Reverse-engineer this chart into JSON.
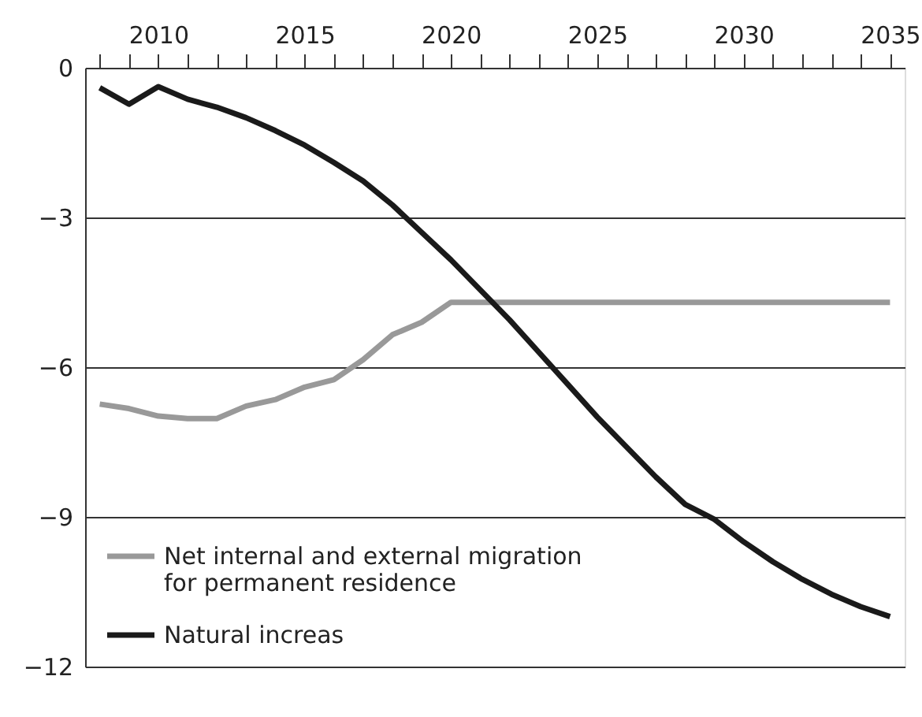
{
  "chart_data": {
    "type": "line",
    "x": [
      2008,
      2009,
      2010,
      2011,
      2012,
      2013,
      2014,
      2015,
      2016,
      2017,
      2018,
      2019,
      2020,
      2021,
      2022,
      2023,
      2024,
      2025,
      2026,
      2027,
      2028,
      2029,
      2030,
      2031,
      2032,
      2033,
      2034,
      2035
    ],
    "series": [
      {
        "name": "Net internal and external migration for permanent residence",
        "color": "#999999",
        "values": [
          -6.74,
          -6.83,
          -6.98,
          -7.03,
          -7.03,
          -6.78,
          -6.65,
          -6.4,
          -6.25,
          -5.85,
          -5.35,
          -5.1,
          -4.7,
          -4.7,
          -4.7,
          -4.7,
          -4.7,
          -4.7,
          -4.7,
          -4.7,
          -4.7,
          -4.7,
          -4.7,
          -4.7,
          -4.7,
          -4.7,
          -4.7,
          -4.7
        ]
      },
      {
        "name": "Natural increas",
        "color": "#1a1a1a",
        "values": [
          -0.4,
          -0.73,
          -0.38,
          -0.63,
          -0.79,
          -1.0,
          -1.26,
          -1.55,
          -1.9,
          -2.27,
          -2.75,
          -3.3,
          -3.85,
          -4.45,
          -5.05,
          -5.7,
          -6.35,
          -7.0,
          -7.6,
          -8.2,
          -8.75,
          -9.05,
          -9.5,
          -9.9,
          -10.25,
          -10.55,
          -10.8,
          -11.0
        ]
      }
    ],
    "xlim": [
      2007.5,
      2035.5
    ],
    "xticks": [
      {
        "value": 2008,
        "label": null
      },
      {
        "value": 2009,
        "label": null
      },
      2010,
      {
        "value": 2011,
        "label": null
      },
      {
        "value": 2012,
        "label": null
      },
      {
        "value": 2013,
        "label": null
      },
      {
        "value": 2014,
        "label": null
      },
      2015,
      {
        "value": 2016,
        "label": null
      },
      {
        "value": 2017,
        "label": null
      },
      {
        "value": 2018,
        "label": null
      },
      {
        "value": 2019,
        "label": null
      },
      2020,
      {
        "value": 2021,
        "label": null
      },
      {
        "value": 2022,
        "label": null
      },
      {
        "value": 2023,
        "label": null
      },
      {
        "value": 2024,
        "label": null
      },
      2025,
      {
        "value": 2026,
        "label": null
      },
      {
        "value": 2027,
        "label": null
      },
      {
        "value": 2028,
        "label": null
      },
      {
        "value": 2029,
        "label": null
      },
      2030,
      {
        "value": 2031,
        "label": null
      },
      {
        "value": 2032,
        "label": null
      },
      {
        "value": 2033,
        "label": null
      },
      {
        "value": 2034,
        "label": null
      },
      2035
    ],
    "ylim": [
      -12,
      0
    ],
    "yticks": [
      0,
      {
        "value": -3,
        "label": "−3"
      },
      {
        "value": -6,
        "label": "−6"
      },
      {
        "value": -9,
        "label": "−9"
      },
      {
        "value": -12,
        "label": "−12"
      }
    ],
    "grid": "y",
    "legend": "bottom left",
    "marker": "none",
    "line_style": "solid"
  }
}
